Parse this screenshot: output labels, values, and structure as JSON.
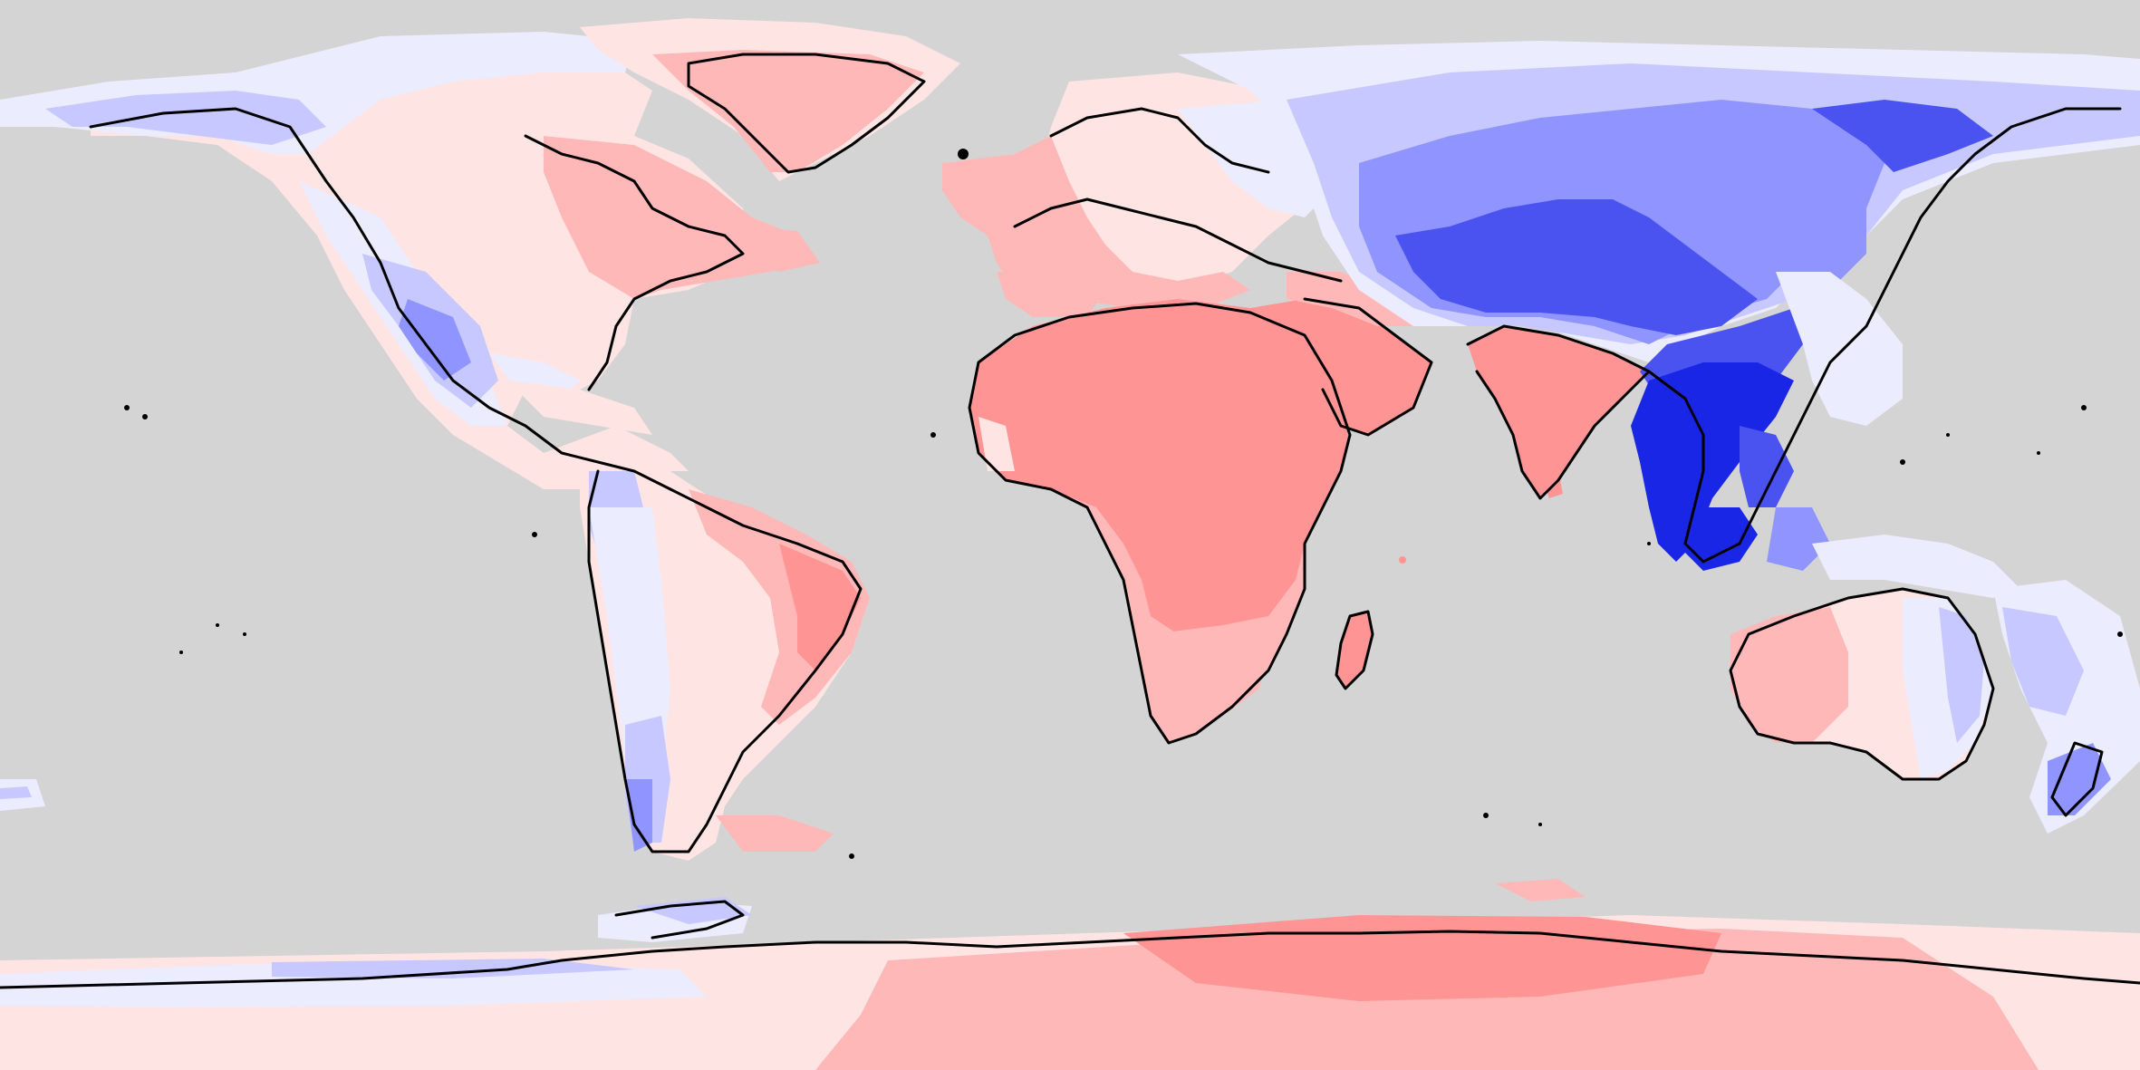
{
  "map": {
    "projection": "equirectangular",
    "colors": {
      "ocean": "#d4d4d4",
      "strong_red": "#ff9494",
      "red": "#ffb8b8",
      "light_red": "#ffe4e4",
      "near_white_blue": "#ececff",
      "light_blue": "#c6c8ff",
      "blue": "#8f94ff",
      "strong_blue": "#4a52f0",
      "deep_blue": "#1a26e6",
      "coastline": "#000000"
    },
    "regions": [
      {
        "name": "north-america",
        "dominant": "light_red"
      },
      {
        "name": "western-us",
        "dominant": "blue"
      },
      {
        "name": "greenland",
        "dominant": "red"
      },
      {
        "name": "south-america-west",
        "dominant": "light_blue"
      },
      {
        "name": "south-america-east",
        "dominant": "red"
      },
      {
        "name": "europe",
        "dominant": "red"
      },
      {
        "name": "africa",
        "dominant": "strong_red"
      },
      {
        "name": "southern-africa",
        "dominant": "red"
      },
      {
        "name": "madagascar",
        "dominant": "strong_red"
      },
      {
        "name": "arabia",
        "dominant": "strong_red"
      },
      {
        "name": "india",
        "dominant": "strong_red"
      },
      {
        "name": "siberia",
        "dominant": "light_blue"
      },
      {
        "name": "central-asia",
        "dominant": "strong_blue"
      },
      {
        "name": "southeast-asia",
        "dominant": "deep_blue"
      },
      {
        "name": "australia-west",
        "dominant": "red"
      },
      {
        "name": "australia-east",
        "dominant": "light_blue"
      },
      {
        "name": "new-zealand",
        "dominant": "light_blue"
      },
      {
        "name": "antarctica",
        "dominant": "red"
      }
    ]
  }
}
